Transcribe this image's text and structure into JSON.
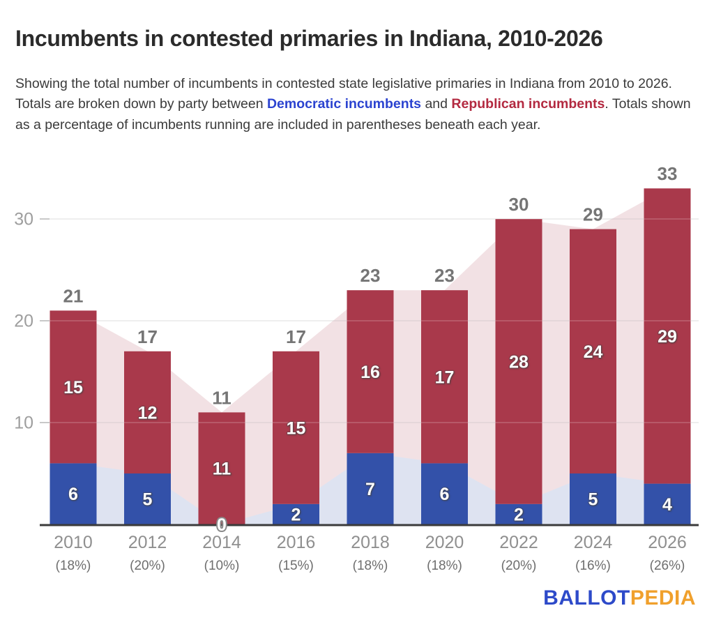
{
  "header": {
    "title": "Incumbents in contested primaries in Indiana, 2010-2026"
  },
  "subtitle": {
    "parts": [
      {
        "text": "Showing the total number of incumbents in contested state legislative primaries in Indiana from 2010 to 2026. Totals are broken down by party between ",
        "style": "plain"
      },
      {
        "text": "Democratic incumbents",
        "style": "dem"
      },
      {
        "text": " and ",
        "style": "plain"
      },
      {
        "text": "Republican incumbents",
        "style": "rep"
      },
      {
        "text": ". Totals shown as a percentage of incumbents running are included in parentheses beneath each year.",
        "style": "plain"
      }
    ],
    "styles": {
      "plain": {
        "color": "#3b3b3b",
        "bold": false
      },
      "dem": {
        "color": "#2b43d0",
        "bold": true
      },
      "rep": {
        "color": "#b32940",
        "bold": true
      }
    }
  },
  "chart_data": {
    "type": "bar",
    "subtype": "stacked-bars-with-area-backdrop",
    "categories": [
      "2010",
      "2012",
      "2014",
      "2016",
      "2018",
      "2020",
      "2022",
      "2024",
      "2026"
    ],
    "category_sublabels": [
      "(18%)",
      "(20%)",
      "(10%)",
      "(15%)",
      "(18%)",
      "(18%)",
      "(20%)",
      "(16%)",
      "(26%)"
    ],
    "series": [
      {
        "name": "Democratic incumbents",
        "color": "#3351a9",
        "area_color": "rgba(51,81,169,0.16)",
        "values": [
          6,
          5,
          0,
          2,
          7,
          6,
          2,
          5,
          4
        ]
      },
      {
        "name": "Republican incumbents",
        "color": "#a9394b",
        "area_color": "rgba(169,57,75,0.15)",
        "values": [
          15,
          12,
          11,
          15,
          16,
          17,
          28,
          24,
          29
        ]
      }
    ],
    "totals": [
      21,
      17,
      11,
      17,
      23,
      23,
      30,
      29,
      33
    ],
    "title": "Incumbents in contested primaries in Indiana, 2010-2026",
    "xlabel": "",
    "ylabel": "",
    "yticks": [
      10,
      20,
      30
    ],
    "ylim": [
      0,
      35
    ],
    "grid": true,
    "legend_position": "none",
    "axis_color": "#3b3b3b",
    "gridline_color": "#e3e3e3",
    "tick_label_color": "#9e9e9e",
    "total_label_color": "#757575",
    "year_label_color": "#8f8f8f",
    "pct_label_color": "#6e6e6e",
    "value_label_color": "#ffffff"
  },
  "logo": {
    "ballot": "BALLOT",
    "pedia": "PEDIA",
    "ballot_color": "#2d4ac9",
    "pedia_color": "#f0a02c"
  }
}
